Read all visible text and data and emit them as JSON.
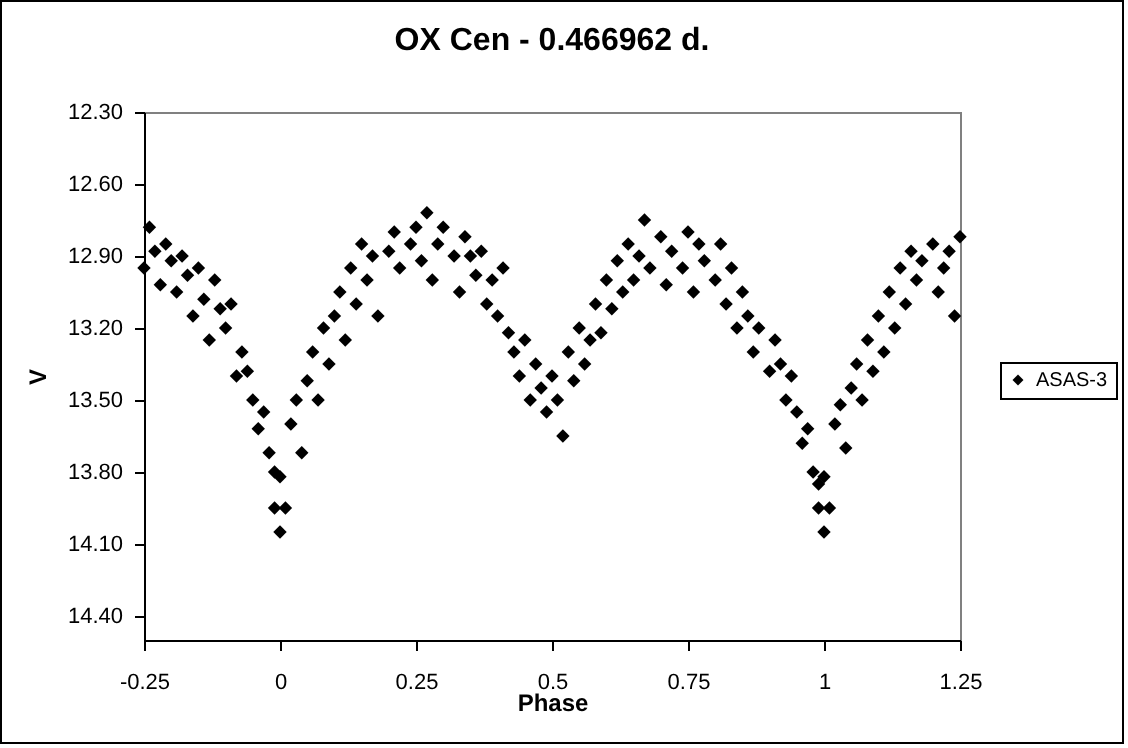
{
  "chart_data": {
    "type": "scatter",
    "title": "OX Cen - 0.466962 d.",
    "xlabel": "Phase",
    "ylabel": "V",
    "x": [
      -0.25,
      -0.24,
      -0.23,
      -0.22,
      -0.21,
      -0.2,
      -0.19,
      -0.18,
      -0.17,
      -0.16,
      -0.15,
      -0.14,
      -0.13,
      -0.12,
      -0.11,
      -0.1,
      -0.09,
      -0.08,
      -0.07,
      -0.06,
      -0.05,
      -0.04,
      -0.03,
      -0.02,
      -0.01,
      -0.01,
      0,
      0,
      0.01,
      0.02,
      0.03,
      0.04,
      0.05,
      0.06,
      0.07,
      0.08,
      0.09,
      0.1,
      0.11,
      0.12,
      0.13,
      0.14,
      0.15,
      0.16,
      0.17,
      0.18,
      0.2,
      0.21,
      0.22,
      0.24,
      0.25,
      0.26,
      0.27,
      0.28,
      0.29,
      0.3,
      0.32,
      0.33,
      0.34,
      0.35,
      0.36,
      0.37,
      0.38,
      0.39,
      0.4,
      0.41,
      0.42,
      0.43,
      0.44,
      0.45,
      0.46,
      0.47,
      0.48,
      0.49,
      0.5,
      0.51,
      0.52,
      0.53,
      0.54,
      0.55,
      0.56,
      0.57,
      0.58,
      0.59,
      0.6,
      0.61,
      0.62,
      0.63,
      0.64,
      0.65,
      0.66,
      0.67,
      0.68,
      0.7,
      0.71,
      0.72,
      0.74,
      0.75,
      0.76,
      0.77,
      0.78,
      0.8,
      0.81,
      0.82,
      0.83,
      0.84,
      0.85,
      0.86,
      0.87,
      0.88,
      0.9,
      0.91,
      0.92,
      0.93,
      0.94,
      0.95,
      0.96,
      0.97,
      0.98,
      0.99,
      0.99,
      1.0,
      1.0,
      1.01,
      1.02,
      1.03,
      1.04,
      1.05,
      1.06,
      1.07,
      1.08,
      1.09,
      1.1,
      1.11,
      1.12,
      1.13,
      1.14,
      1.15,
      1.16,
      1.17,
      1.18,
      1.2,
      1.21,
      1.22,
      1.23,
      1.24,
      1.25
    ],
    "series": [
      {
        "name": "ASAS-3",
        "color": "#000000",
        "values": [
          12.95,
          12.78,
          12.88,
          13.02,
          12.85,
          12.92,
          13.05,
          12.9,
          12.98,
          13.15,
          12.95,
          13.08,
          13.25,
          13.0,
          13.12,
          13.2,
          13.1,
          13.4,
          13.3,
          13.38,
          13.5,
          13.62,
          13.55,
          13.72,
          13.8,
          13.95,
          13.82,
          14.05,
          13.95,
          13.6,
          13.5,
          13.72,
          13.42,
          13.3,
          13.5,
          13.2,
          13.35,
          13.15,
          13.05,
          13.25,
          12.95,
          13.1,
          12.85,
          13.0,
          12.9,
          13.15,
          12.88,
          12.8,
          12.95,
          12.85,
          12.78,
          12.92,
          12.72,
          13.0,
          12.85,
          12.78,
          12.9,
          13.05,
          12.82,
          12.9,
          12.98,
          12.88,
          13.1,
          13.0,
          13.15,
          12.95,
          13.22,
          13.3,
          13.4,
          13.25,
          13.5,
          13.35,
          13.45,
          13.55,
          13.4,
          13.5,
          13.65,
          13.3,
          13.42,
          13.2,
          13.35,
          13.25,
          13.1,
          13.22,
          13.0,
          13.12,
          12.92,
          13.05,
          12.85,
          13.0,
          12.9,
          12.75,
          12.95,
          12.82,
          13.02,
          12.88,
          12.95,
          12.8,
          13.05,
          12.85,
          12.92,
          13.0,
          12.85,
          13.1,
          12.95,
          13.2,
          13.05,
          13.15,
          13.3,
          13.2,
          13.38,
          13.25,
          13.35,
          13.5,
          13.4,
          13.55,
          13.68,
          13.62,
          13.8,
          13.85,
          13.95,
          13.82,
          14.05,
          13.95,
          13.6,
          13.52,
          13.7,
          13.45,
          13.35,
          13.5,
          13.25,
          13.38,
          13.15,
          13.3,
          13.05,
          13.2,
          12.95,
          13.1,
          12.88,
          13.0,
          12.92,
          12.85,
          13.05,
          12.95,
          12.88,
          13.15,
          12.82
        ]
      }
    ],
    "xlim": [
      -0.25,
      1.25
    ],
    "xticks": [
      {
        "value": -0.25,
        "label": "-0.25"
      },
      0,
      0.25,
      0.5,
      0.75,
      1,
      1.25
    ],
    "ylim": [
      14.5,
      12.3
    ],
    "yticks": [
      {
        "value": 12.3,
        "label": "12.30"
      },
      {
        "value": 12.6,
        "label": "12.60"
      },
      {
        "value": 12.9,
        "label": "12.90"
      },
      {
        "value": 13.2,
        "label": "13.20"
      },
      {
        "value": 13.5,
        "label": "13.50"
      },
      {
        "value": 13.8,
        "label": "13.80"
      },
      {
        "value": 14.1,
        "label": "14.10"
      },
      {
        "value": 14.4,
        "label": "14.40"
      }
    ],
    "marker": "diamond",
    "legend": "right",
    "grid": false
  }
}
